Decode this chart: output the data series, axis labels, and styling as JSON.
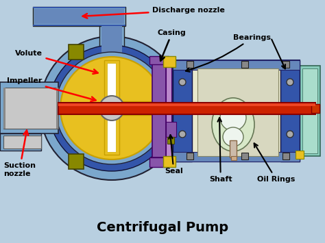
{
  "title": "Centrifugal Pump",
  "title_fontsize": 14,
  "title_fontweight": "bold",
  "background_color": "#b8cfe0",
  "labels": {
    "discharge_nozzle": "Discharge nozzle",
    "volute": "Volute",
    "impeller": "Impeller",
    "suction_nozzle": "Suction\nnozzle",
    "casing": "Casing",
    "bearings": "Bearings",
    "seal": "Seal",
    "shaft": "Shaft",
    "oil_rings": "Oil Rings"
  },
  "colors": {
    "blue_body": "#7ba7cc",
    "blue_mid": "#6688bb",
    "blue_dark": "#3355aa",
    "yellow": "#e8c020",
    "yellow_dark": "#c8a000",
    "purple": "#8855aa",
    "purple_light": "#bb88cc",
    "red_shaft": "#cc2200",
    "gray_light": "#c8c8c8",
    "gray_med": "#aaaaaa",
    "gray_dark": "#888888",
    "olive": "#888800",
    "green_light": "#d8e8c8",
    "green_mid": "#aabbaa",
    "cyan_light": "#88ccbb",
    "white": "#ffffff",
    "cream": "#e8e8cc",
    "tan": "#ccbbaa",
    "black": "#111111"
  }
}
